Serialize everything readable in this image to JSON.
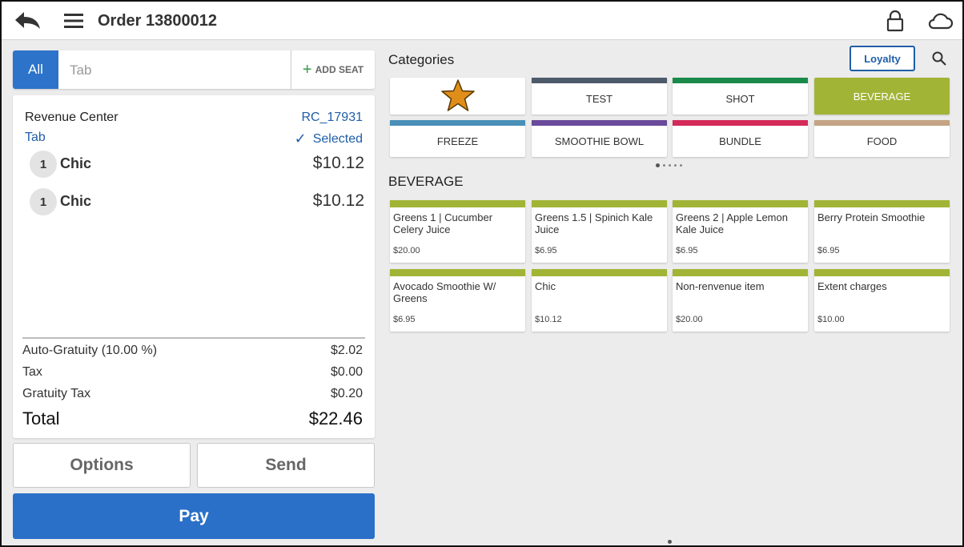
{
  "header": {
    "title": "Order 13800012",
    "icons": {
      "back": "back-arrow-icon",
      "menu": "hamburger-menu-icon",
      "lock": "lock-icon",
      "cloud": "cloud-icon"
    }
  },
  "seat_bar": {
    "all_label": "All",
    "tab_label": "Tab",
    "add_seat_label": "ADD SEAT"
  },
  "order": {
    "rc_label": "Revenue Center",
    "rc_value": "RC_17931",
    "tab_label": "Tab",
    "selected_label": "Selected",
    "items": [
      {
        "qty": "1",
        "name": "Chic",
        "price": "$10.12"
      },
      {
        "qty": "1",
        "name": "Chic",
        "price": "$10.12"
      }
    ],
    "totals": {
      "auto_gratuity_label": "Auto-Gratuity (10.00 %)",
      "auto_gratuity_value": "$2.02",
      "tax_label": "Tax",
      "tax_value": "$0.00",
      "gratuity_tax_label": "Gratuity Tax",
      "gratuity_tax_value": "$0.20",
      "total_label": "Total",
      "total_value": "$22.46"
    }
  },
  "actions": {
    "options": "Options",
    "send": "Send",
    "pay": "Pay"
  },
  "categories": {
    "title": "Categories",
    "loyalty": "Loyalty",
    "tiles": [
      {
        "label": "",
        "icon": "star-icon",
        "color": "#ffffff"
      },
      {
        "label": "TEST",
        "color": "#4d5a6a"
      },
      {
        "label": "SHOT",
        "color": "#1a8a4a"
      },
      {
        "label": "BEVERAGE",
        "color": "#a2b436",
        "active": true
      },
      {
        "label": "FREEZE",
        "color": "#4a90b8"
      },
      {
        "label": "SMOOTHIE BOWL",
        "color": "#6a4a9a"
      },
      {
        "label": "BUNDLE",
        "color": "#d42a5a"
      },
      {
        "label": "FOOD",
        "color": "#c4a484"
      }
    ]
  },
  "section": {
    "title": "BEVERAGE",
    "products": [
      {
        "name": "Greens 1 | Cucumber Celery Juice",
        "price": "$20.00"
      },
      {
        "name": "Greens 1.5 | Spinich Kale Juice",
        "price": "$6.95"
      },
      {
        "name": "Greens 2 | Apple Lemon Kale Juice",
        "price": "$6.95"
      },
      {
        "name": "Berry Protein Smoothie",
        "price": "$6.95"
      },
      {
        "name": "Avocado Smoothie W/ Greens",
        "price": "$6.95"
      },
      {
        "name": "Chic",
        "price": "$10.12"
      },
      {
        "name": "Non-renvenue item",
        "price": "$20.00"
      },
      {
        "name": "Extent charges",
        "price": "$10.00"
      }
    ]
  }
}
